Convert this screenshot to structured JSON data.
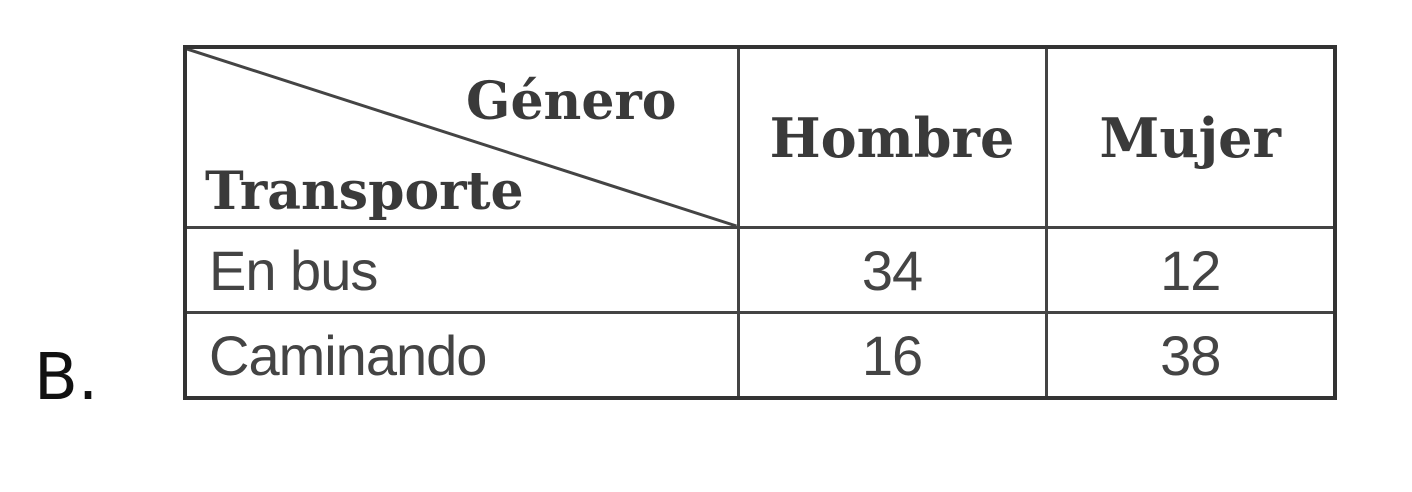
{
  "option_label": "B.",
  "table": {
    "corner": {
      "column_variable": "Género",
      "row_variable": "Transporte"
    },
    "columns": [
      "Hombre",
      "Mujer"
    ],
    "rows": [
      {
        "label": "En bus",
        "values": [
          "34",
          "12"
        ]
      },
      {
        "label": "Caminando",
        "values": [
          "16",
          "38"
        ]
      }
    ]
  }
}
